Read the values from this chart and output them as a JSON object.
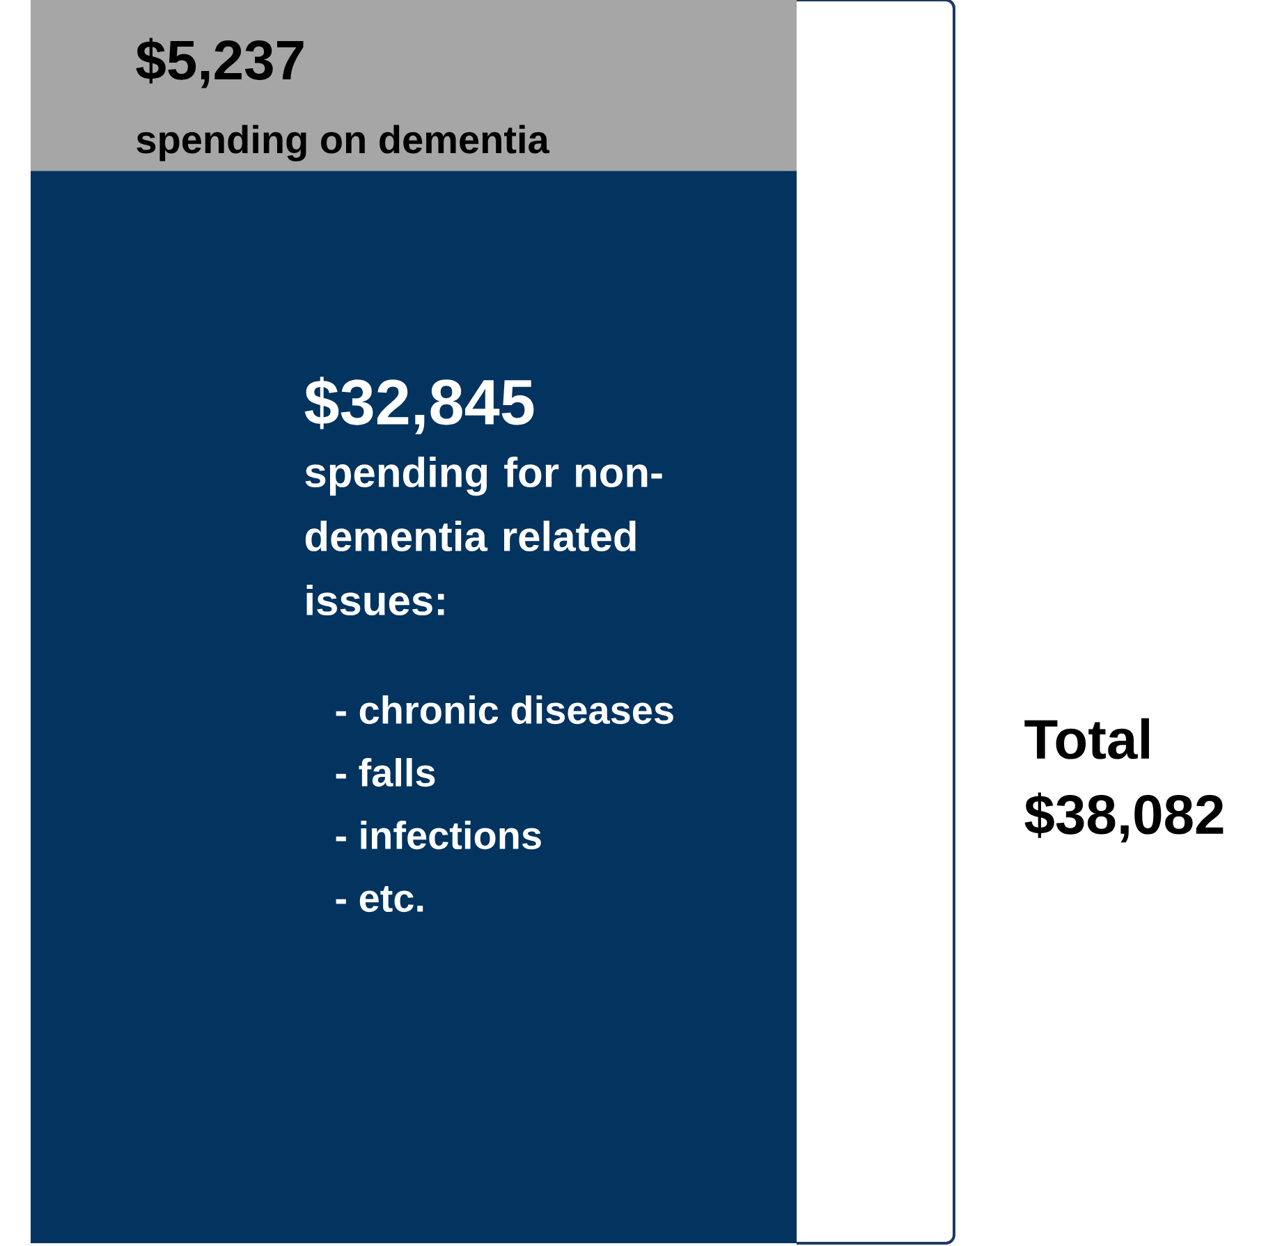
{
  "chart_data": {
    "type": "bar",
    "stacked": true,
    "categories": [
      null
    ],
    "tick_labels": false,
    "series": [
      {
        "name": "spending for non-dementia related issues:",
        "color": "#03335f",
        "values": [
          32845
        ],
        "value_labels": [
          "$32,845"
        ]
      },
      {
        "name": "spending on dementia",
        "color": "#a6a6a6",
        "values": [
          5237
        ],
        "value_labels": [
          "$5,237"
        ]
      }
    ],
    "annotations": [
      "- chronic diseases",
      "- falls",
      "- infections",
      "- etc.",
      "Total $38,082"
    ]
  }
}
